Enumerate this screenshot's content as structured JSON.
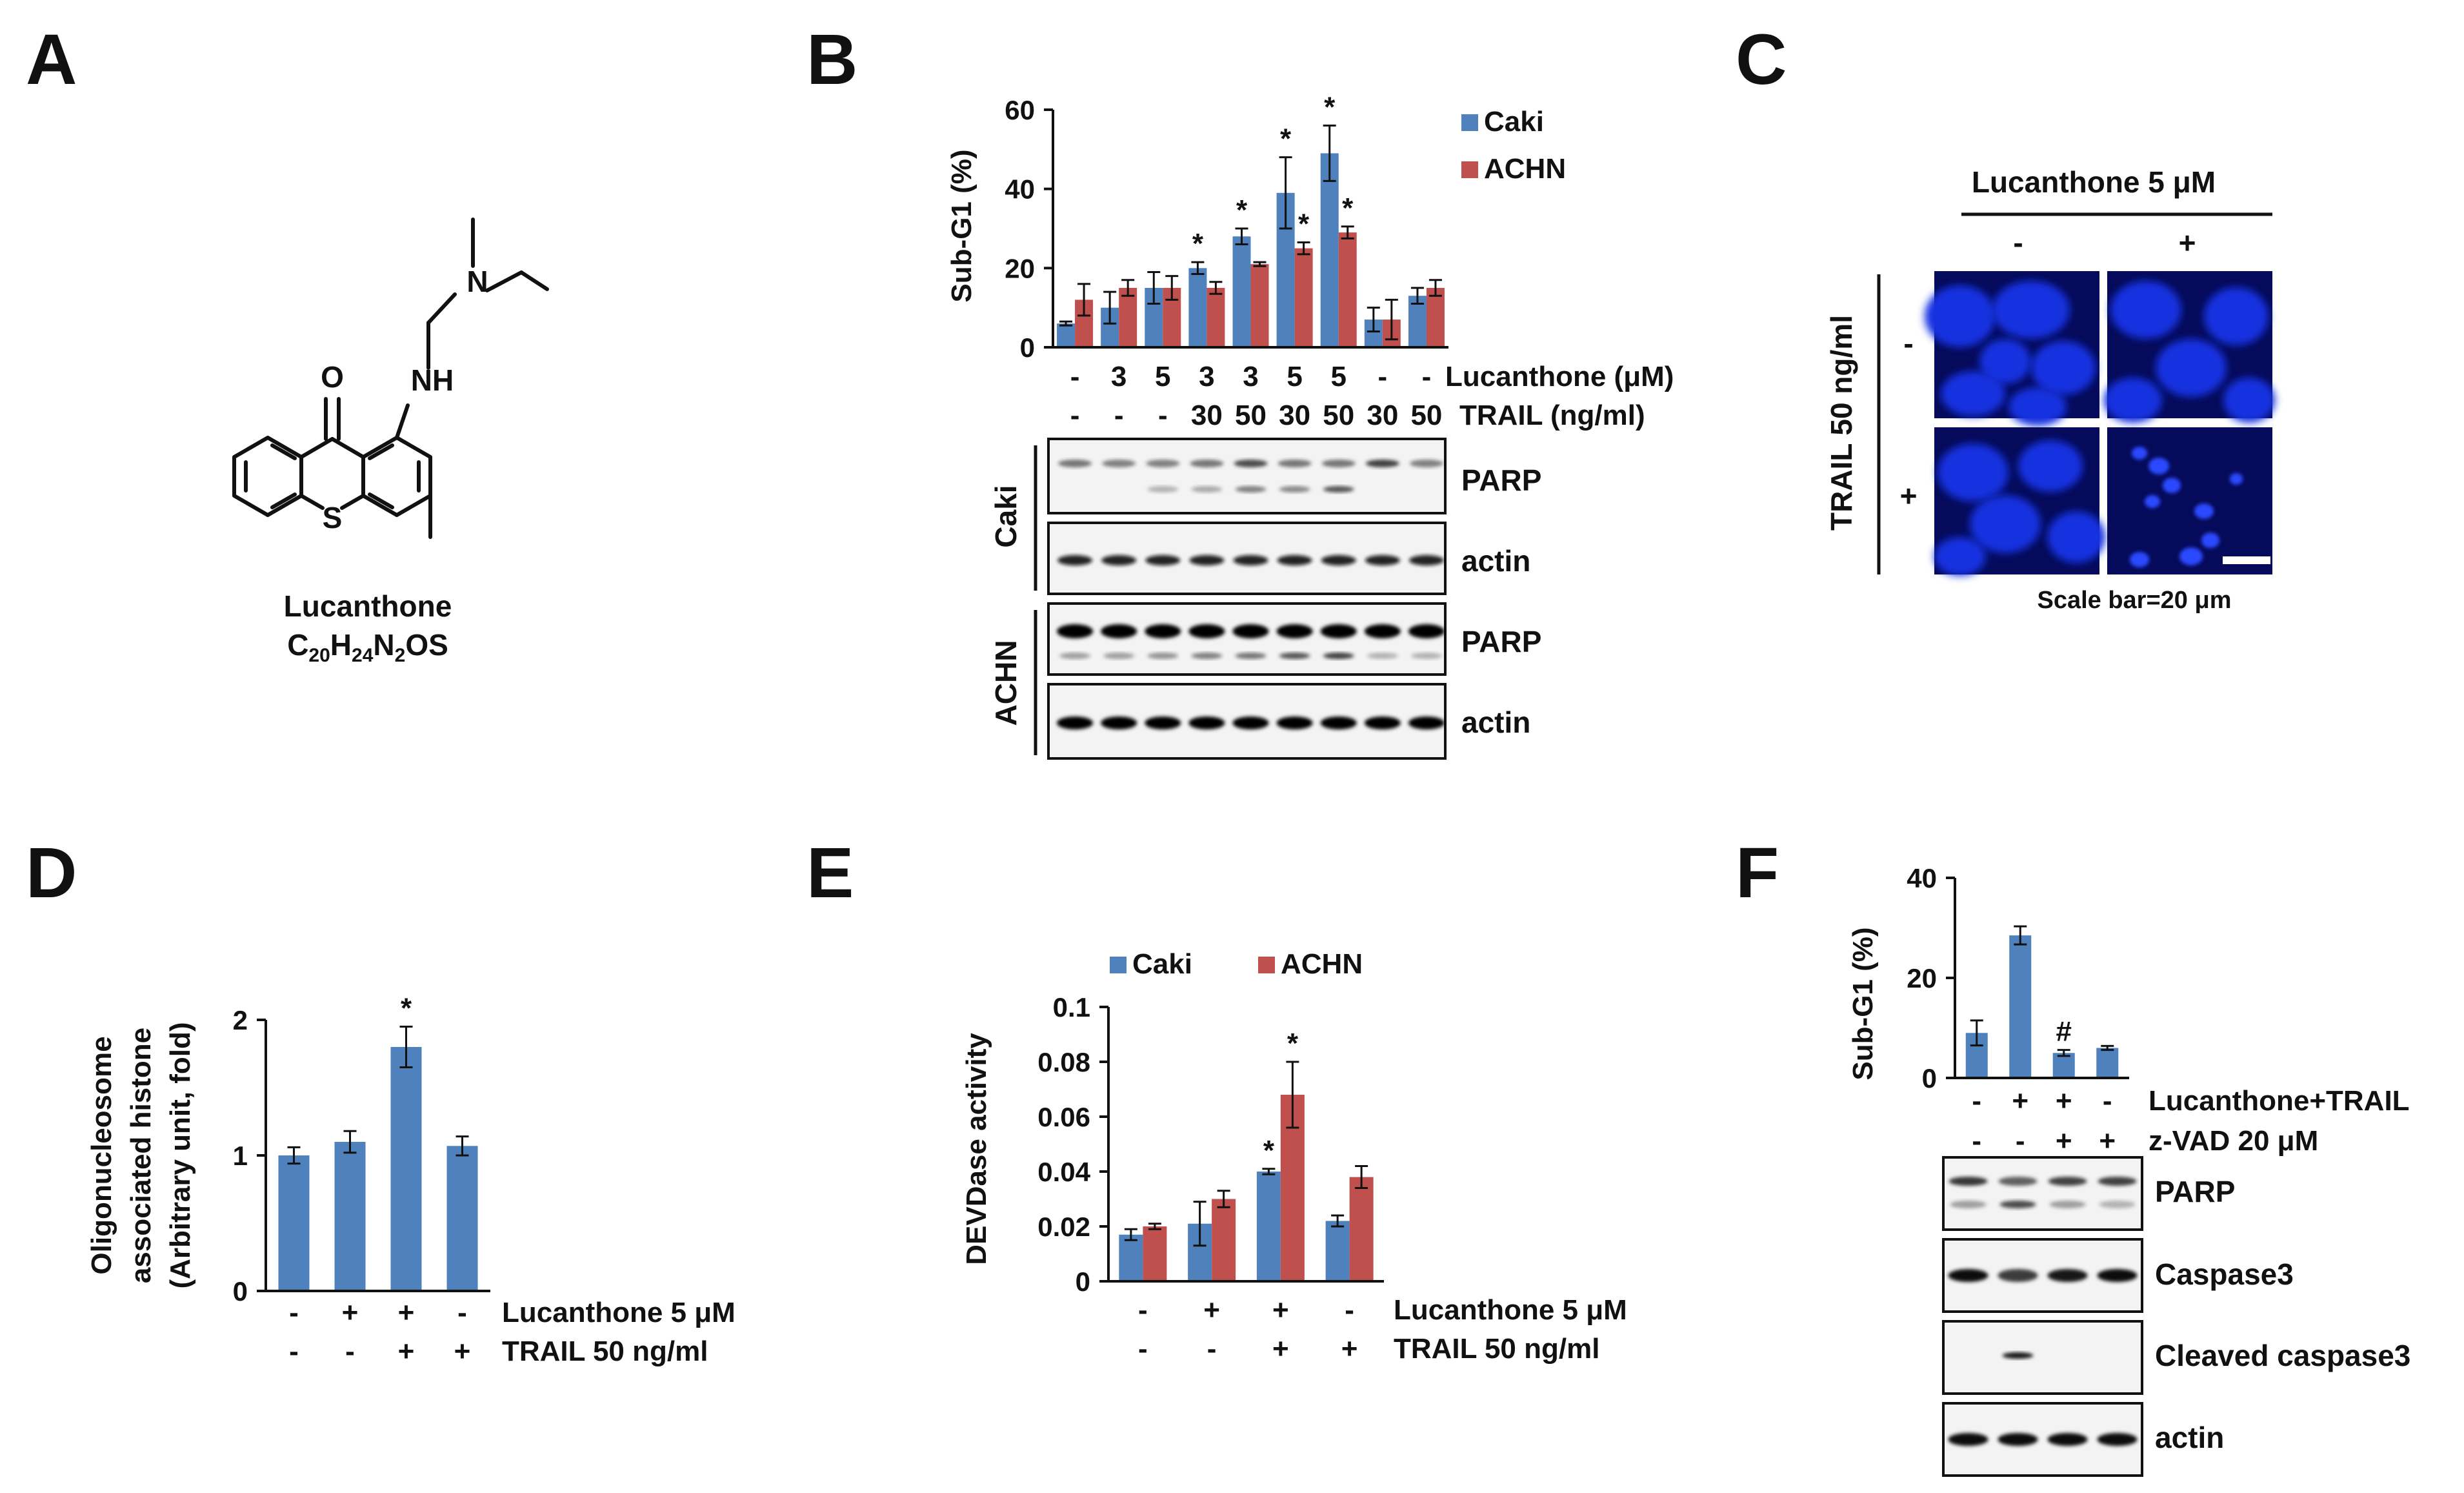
{
  "colors": {
    "caki": "#4f81bd",
    "achn": "#c0504d",
    "axis": "#111111",
    "nucleus": "#1530e0",
    "nucleus_dark": "#0a1896",
    "background_fluor": "#050a5a"
  },
  "panel_letters": [
    "A",
    "B",
    "C",
    "D",
    "E",
    "F"
  ],
  "panelA": {
    "name": "Lucanthone",
    "formula_parts": [
      "C",
      "20",
      "H",
      "24",
      "N",
      "2",
      "OS"
    ],
    "atoms": {
      "o": "O",
      "nh": "NH",
      "n": "N",
      "s": "S"
    }
  },
  "panelB": {
    "chart_data": {
      "type": "bar",
      "ylabel": "Sub-G1 (%)",
      "ylim": [
        0,
        60
      ],
      "yticks": [
        "0",
        "20",
        "40",
        "60"
      ],
      "legend": "top-right",
      "series": [
        {
          "name": "Caki",
          "values": [
            6,
            10,
            15,
            20,
            28,
            39,
            49,
            7,
            13
          ],
          "errors": [
            0.5,
            4,
            4,
            1.5,
            2,
            9,
            7,
            3,
            2
          ],
          "sig": [
            false,
            false,
            false,
            true,
            true,
            true,
            true,
            false,
            false
          ]
        },
        {
          "name": "ACHN",
          "values": [
            12,
            15,
            15,
            15,
            21,
            25,
            29,
            7,
            15
          ],
          "errors": [
            4,
            2,
            3,
            1.5,
            0.5,
            1.5,
            1.5,
            5,
            2
          ],
          "sig": [
            false,
            false,
            false,
            false,
            false,
            true,
            true,
            false,
            false
          ]
        }
      ]
    },
    "lucanthone_row": [
      "-",
      "3",
      "5",
      "3",
      "3",
      "5",
      "5",
      "-",
      "-"
    ],
    "trail_row": [
      "-",
      "-",
      "-",
      "30",
      "50",
      "30",
      "50",
      "30",
      "50"
    ],
    "lucanthone_label": "Lucanthone (μM)",
    "trail_label": "TRAIL (ng/ml)",
    "blots": [
      {
        "cell": "Caki",
        "labels": [
          "PARP",
          "actin"
        ]
      },
      {
        "cell": "ACHN",
        "labels": [
          "PARP",
          "actin"
        ]
      }
    ]
  },
  "panelC": {
    "header": "Lucanthone 5 μM",
    "col_labels": [
      "-",
      "+"
    ],
    "row_axis_label": "TRAIL  50 ng/ml",
    "row_labels": [
      "-",
      "+"
    ],
    "scale_label": "Scale bar=20 μm"
  },
  "panelD": {
    "chart_data": {
      "type": "bar",
      "ylabel_lines": [
        "Oligonucleosome",
        "associated histone",
        "(Arbitrary unit, fold)"
      ],
      "ylim": [
        0,
        2
      ],
      "yticks": [
        "0",
        "1",
        "2"
      ],
      "values": [
        1.0,
        1.1,
        1.8,
        1.07
      ],
      "errors": [
        0.06,
        0.08,
        0.15,
        0.07
      ],
      "sig": [
        false,
        false,
        true,
        false
      ]
    },
    "rows": [
      {
        "label": "Lucanthone 5 μM",
        "marks": [
          "-",
          "+",
          "+",
          "-"
        ]
      },
      {
        "label": "TRAIL  50 ng/ml",
        "marks": [
          "-",
          "-",
          "+",
          "+"
        ]
      }
    ]
  },
  "panelE": {
    "chart_data": {
      "type": "bar",
      "ylabel": "DEVDase activity",
      "ylim": [
        0,
        0.1
      ],
      "yticks": [
        "0",
        "0.02",
        "0.04",
        "0.06",
        "0.08",
        "0.1"
      ],
      "legend": "top",
      "series": [
        {
          "name": "Caki",
          "values": [
            0.017,
            0.021,
            0.04,
            0.022
          ],
          "errors": [
            0.002,
            0.008,
            0.001,
            0.002
          ],
          "sig": [
            false,
            false,
            true,
            false
          ]
        },
        {
          "name": "ACHN",
          "values": [
            0.02,
            0.03,
            0.068,
            0.038
          ],
          "errors": [
            0.001,
            0.003,
            0.012,
            0.004
          ],
          "sig": [
            false,
            false,
            true,
            false
          ]
        }
      ]
    },
    "rows": [
      {
        "label": "Lucanthone 5 μM",
        "marks": [
          "-",
          "+",
          "+",
          "-"
        ]
      },
      {
        "label": "TRAIL  50 ng/ml",
        "marks": [
          "-",
          "-",
          "+",
          "+"
        ]
      }
    ]
  },
  "panelF": {
    "chart_data": {
      "type": "bar",
      "ylabel": "Sub-G1 (%)",
      "ylim": [
        0,
        40
      ],
      "yticks": [
        "0",
        "20",
        "40"
      ],
      "values": [
        9,
        28.5,
        5,
        6
      ],
      "errors": [
        2.5,
        1.8,
        0.6,
        0.4
      ],
      "sig": [
        "",
        "",
        "#",
        ""
      ]
    },
    "rows": [
      {
        "label": "Lucanthone+TRAIL",
        "marks": [
          "-",
          "+",
          "+",
          "-"
        ]
      },
      {
        "label": "z-VAD 20 μM",
        "marks": [
          "-",
          "-",
          "+",
          "+"
        ]
      }
    ],
    "blots": [
      "PARP",
      "Caspase3",
      "Cleaved caspase3",
      "actin"
    ]
  }
}
